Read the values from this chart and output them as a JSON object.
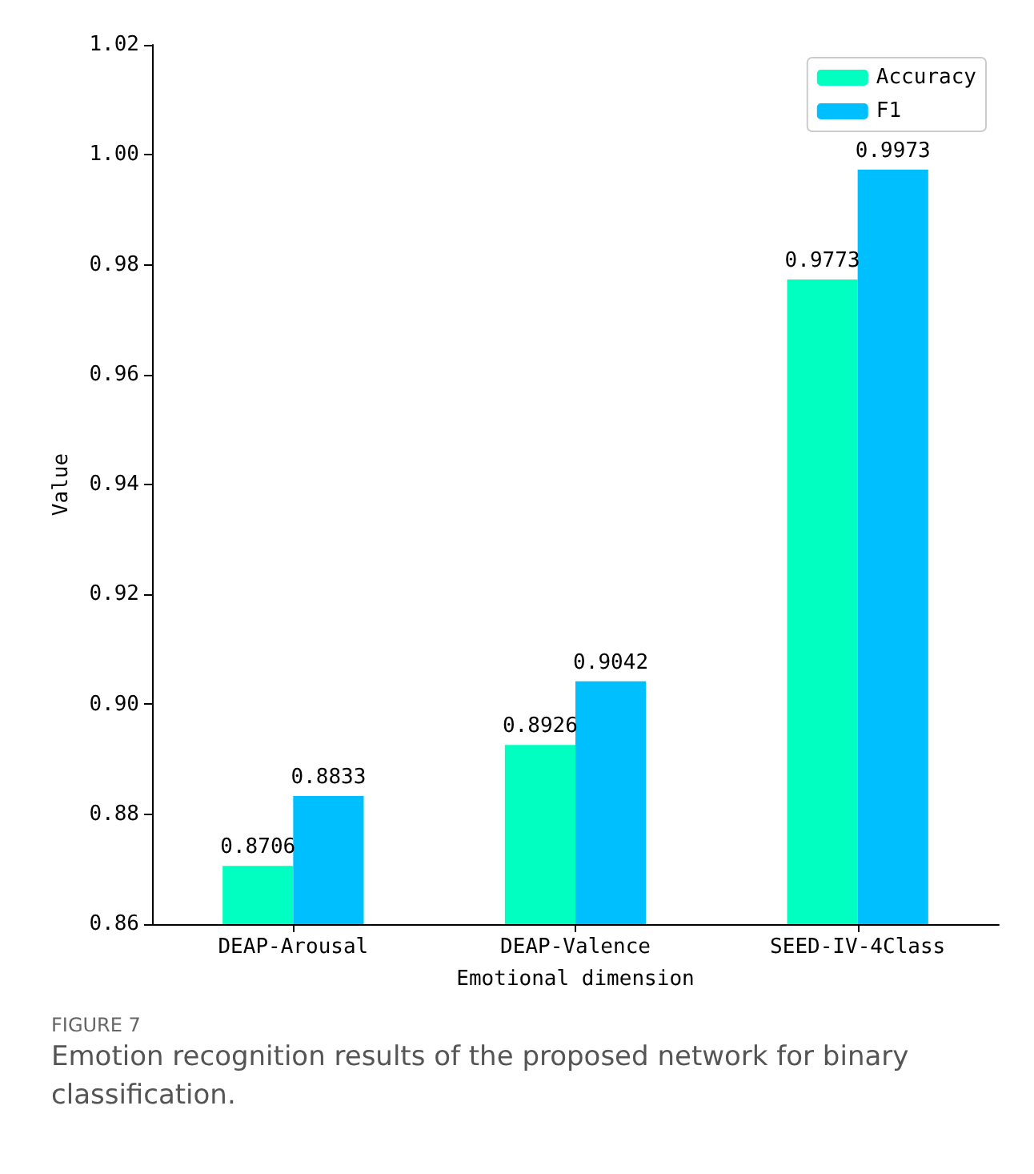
{
  "chart_data": {
    "type": "bar",
    "xlabel": "Emotional dimension",
    "ylabel": "Value",
    "categories": [
      "DEAP-Arousal",
      "DEAP-Valence",
      "SEED-IV-4Class"
    ],
    "series": [
      {
        "name": "Accuracy",
        "color": "#00ffc0",
        "values": [
          0.8706,
          0.8926,
          0.9773
        ]
      },
      {
        "name": "F1",
        "color": "#00bfff",
        "values": [
          0.8833,
          0.9042,
          0.9973
        ]
      }
    ],
    "ylim": [
      0.86,
      1.02
    ],
    "yticks": [
      {
        "value": 0.86,
        "label": "0.86"
      },
      {
        "value": 0.88,
        "label": "0.88"
      },
      {
        "value": 0.9,
        "label": "0.90"
      },
      {
        "value": 0.92,
        "label": "0.92"
      },
      {
        "value": 0.94,
        "label": "0.94"
      },
      {
        "value": 0.96,
        "label": "0.96"
      },
      {
        "value": 0.98,
        "label": "0.98"
      },
      {
        "value": 1.0,
        "label": "1.00"
      },
      {
        "value": 1.02,
        "label": "1.02"
      }
    ],
    "data_labels": true,
    "legend": "top right",
    "grid": false,
    "annotations": [
      "FIGURE 7",
      "Emotion recognition results of the proposed network for binary classification."
    ]
  }
}
